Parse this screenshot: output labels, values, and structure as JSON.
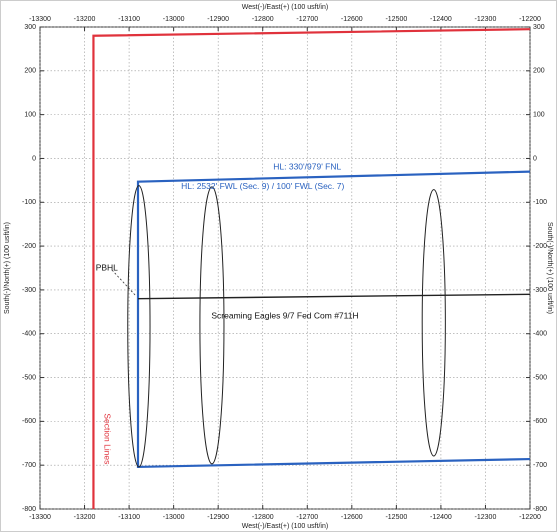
{
  "chart_data": {
    "type": "line",
    "x_label": "West(-)/East(+) (100 usft/in)",
    "x2_label": "West(-)/East(+) (100 usft/in)",
    "y_label": "South(-)/North(+) (100 usft/in)",
    "y2_label": "South(-)/North(+) (100 usft/in)",
    "xlim": [
      -13300,
      -12200
    ],
    "xticks": [
      -13300,
      -13200,
      -13100,
      -13000,
      -12900,
      -12800,
      -12700,
      -12600,
      -12500,
      -12400,
      -12300,
      -12200
    ],
    "ylim": [
      -800,
      300
    ],
    "yticks": [
      -800,
      -700,
      -600,
      -500,
      -400,
      -300,
      -200,
      -100,
      0,
      100,
      200,
      300
    ],
    "grid": true,
    "series": [
      {
        "color": "#e0323c",
        "x": [
          -13180,
          -13180,
          -12200
        ],
        "values": [
          -800,
          280,
          295
        ]
      },
      {
        "color": "#2a62c0",
        "x": [
          -12200,
          -13080,
          -13080,
          -12200
        ],
        "values": [
          -30,
          -53,
          -704,
          -686
        ]
      },
      {
        "color": "#222222",
        "x": [
          -13080,
          -12200
        ],
        "values": [
          -320,
          -310
        ]
      }
    ],
    "ellipses": [
      {
        "cx": -13078,
        "cy": -383,
        "rx": 25,
        "ry": 321
      },
      {
        "cx": -12914,
        "cy": -381,
        "rx": 27,
        "ry": 316
      },
      {
        "cx": -12416,
        "cy": -375,
        "rx": 26,
        "ry": 304
      }
    ],
    "annotations": [
      "HL: 330'/979' FNL",
      "HL: 2532' FWL (Sec. 9) / 100' FWL (Sec. 7)",
      "Screaming Eagles 9/7 Fed Com #711H",
      "PBHL",
      "Section Lines"
    ]
  }
}
